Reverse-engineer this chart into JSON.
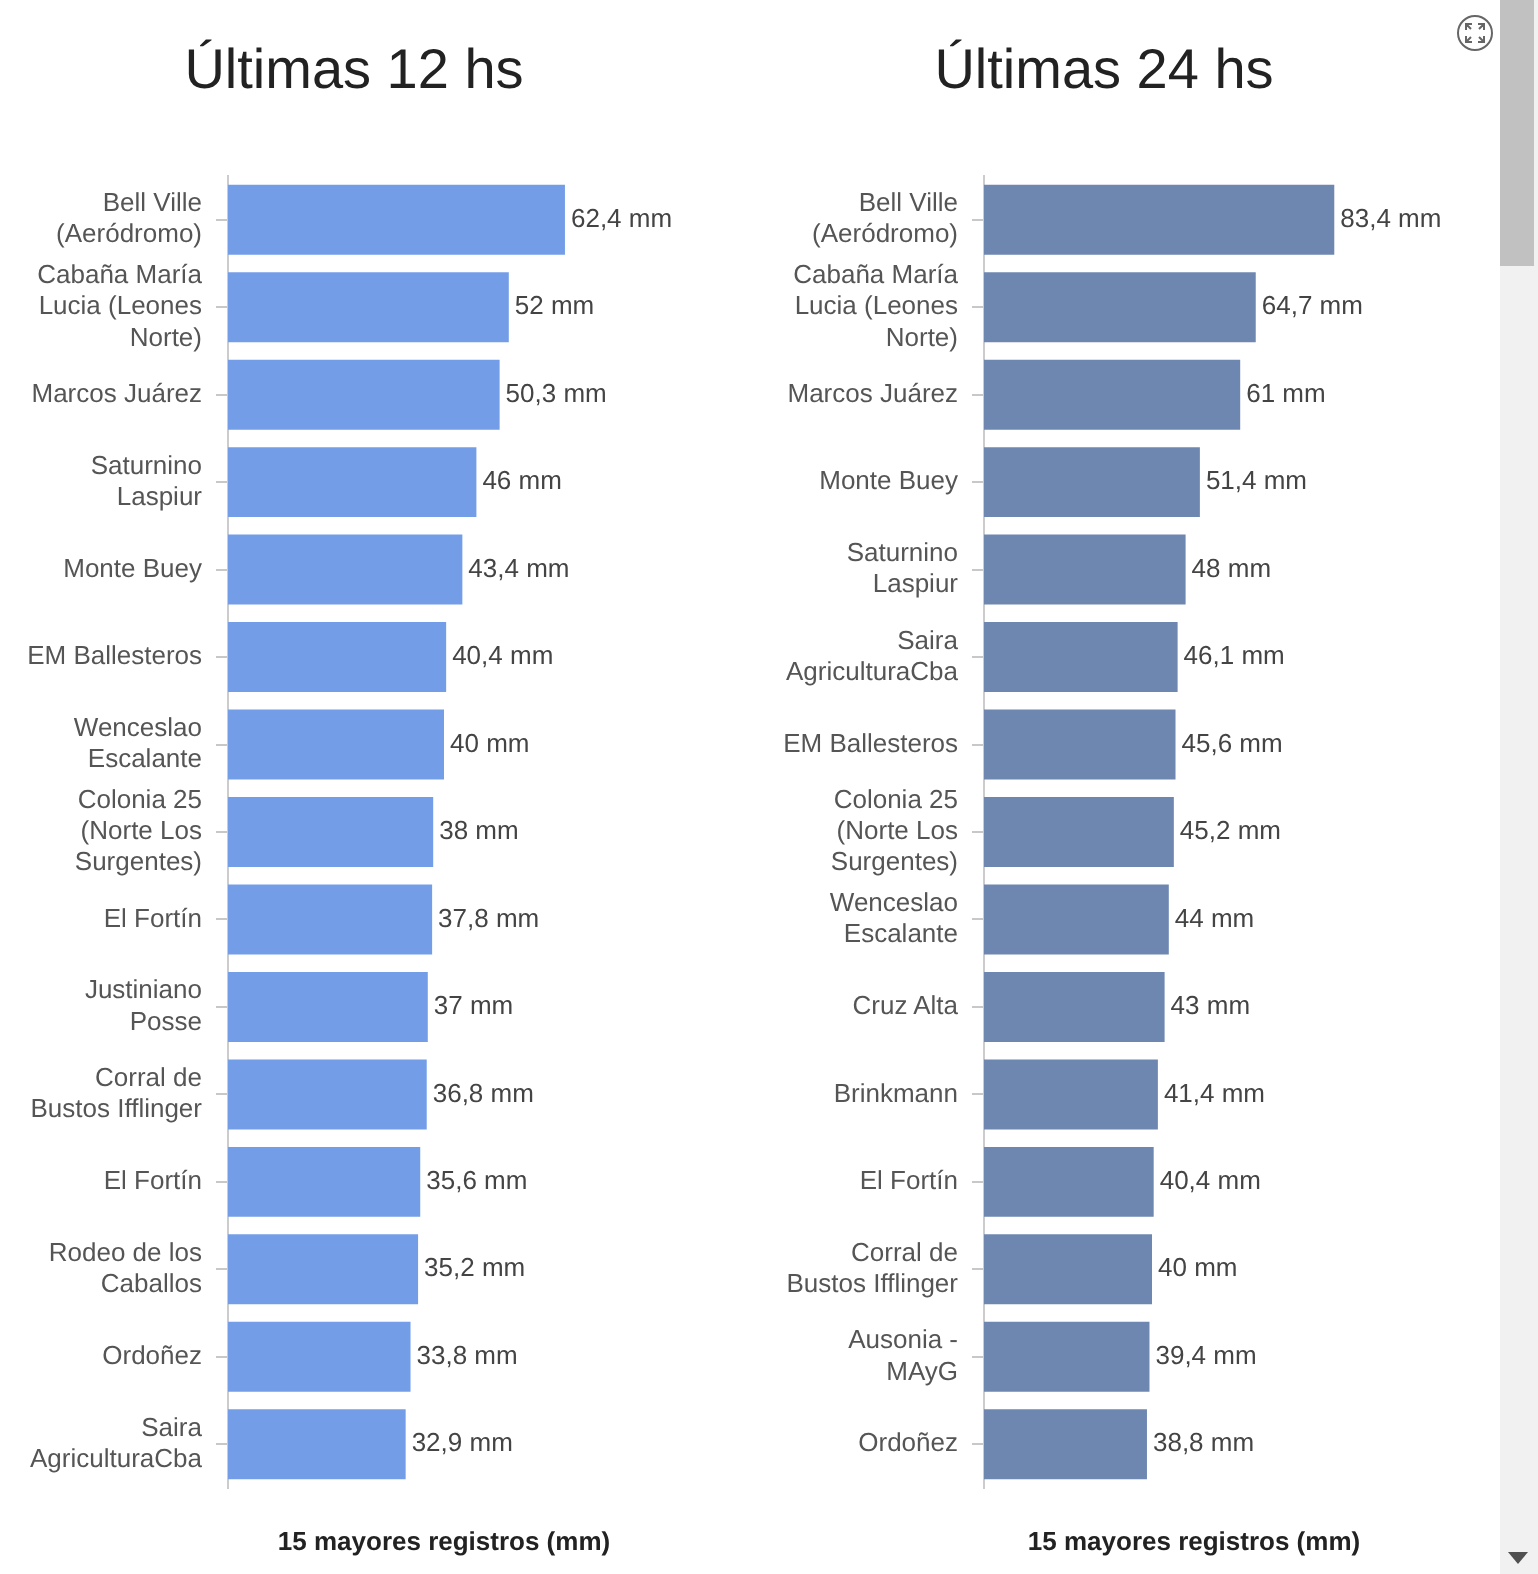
{
  "chart_data": [
    {
      "type": "bar",
      "orientation": "horizontal",
      "title": "Últimas 12 hs",
      "xlabel": "15 mayores registros (mm)",
      "tick_labels": "y",
      "color": "#739ee7",
      "categories": [
        "Bell Ville (Aeródromo)",
        "Cabaña María Lucia (Leones Norte)",
        "Marcos Juárez",
        "Saturnino Laspiur",
        "Monte Buey",
        "EM Ballesteros",
        "Wenceslao Escalante",
        "Colonia 25 (Norte Los Surgentes)",
        "El Fortín",
        "Justiniano Posse",
        "Corral de Bustos Ifflinger",
        "El Fortín",
        "Rodeo de los Caballos",
        "Ordoñez",
        "Saira AgriculturaCba"
      ],
      "values": [
        62.4,
        52,
        50.3,
        46,
        43.4,
        40.4,
        40,
        38,
        37.8,
        37,
        36.8,
        35.6,
        35.2,
        33.8,
        32.9
      ],
      "value_labels": [
        "62,4 mm",
        "52 mm",
        "50,3 mm",
        "46 mm",
        "43,4 mm",
        "40,4 mm",
        "40 mm",
        "38 mm",
        "37,8 mm",
        "37 mm",
        "36,8 mm",
        "35,6 mm",
        "35,2 mm",
        "33,8 mm",
        "32,9 mm"
      ]
    },
    {
      "type": "bar",
      "orientation": "horizontal",
      "title": "Últimas 24 hs",
      "xlabel": "15 mayores registros (mm)",
      "tick_labels": "y",
      "color": "#6e87b0",
      "categories": [
        "Bell Ville (Aeródromo)",
        "Cabaña María Lucia (Leones Norte)",
        "Marcos Juárez",
        "Monte Buey",
        "Saturnino Laspiur",
        "Saira AgriculturaCba",
        "EM Ballesteros",
        "Colonia 25 (Norte Los Surgentes)",
        "Wenceslao Escalante",
        "Cruz Alta",
        "Brinkmann",
        "El Fortín",
        "Corral de Bustos Ifflinger",
        "Ausonia - MAyG",
        "Ordoñez"
      ],
      "values": [
        83.4,
        64.7,
        61,
        51.4,
        48,
        46.1,
        45.6,
        45.2,
        44,
        43,
        41.4,
        40.4,
        40,
        39.4,
        38.8
      ],
      "value_labels": [
        "83,4 mm",
        "64,7 mm",
        "61 mm",
        "51,4 mm",
        "48 mm",
        "46,1 mm",
        "45,6 mm",
        "45,2 mm",
        "44 mm",
        "43 mm",
        "41,4 mm",
        "40,4 mm",
        "40 mm",
        "39,4 mm",
        "38,8 mm"
      ]
    }
  ]
}
